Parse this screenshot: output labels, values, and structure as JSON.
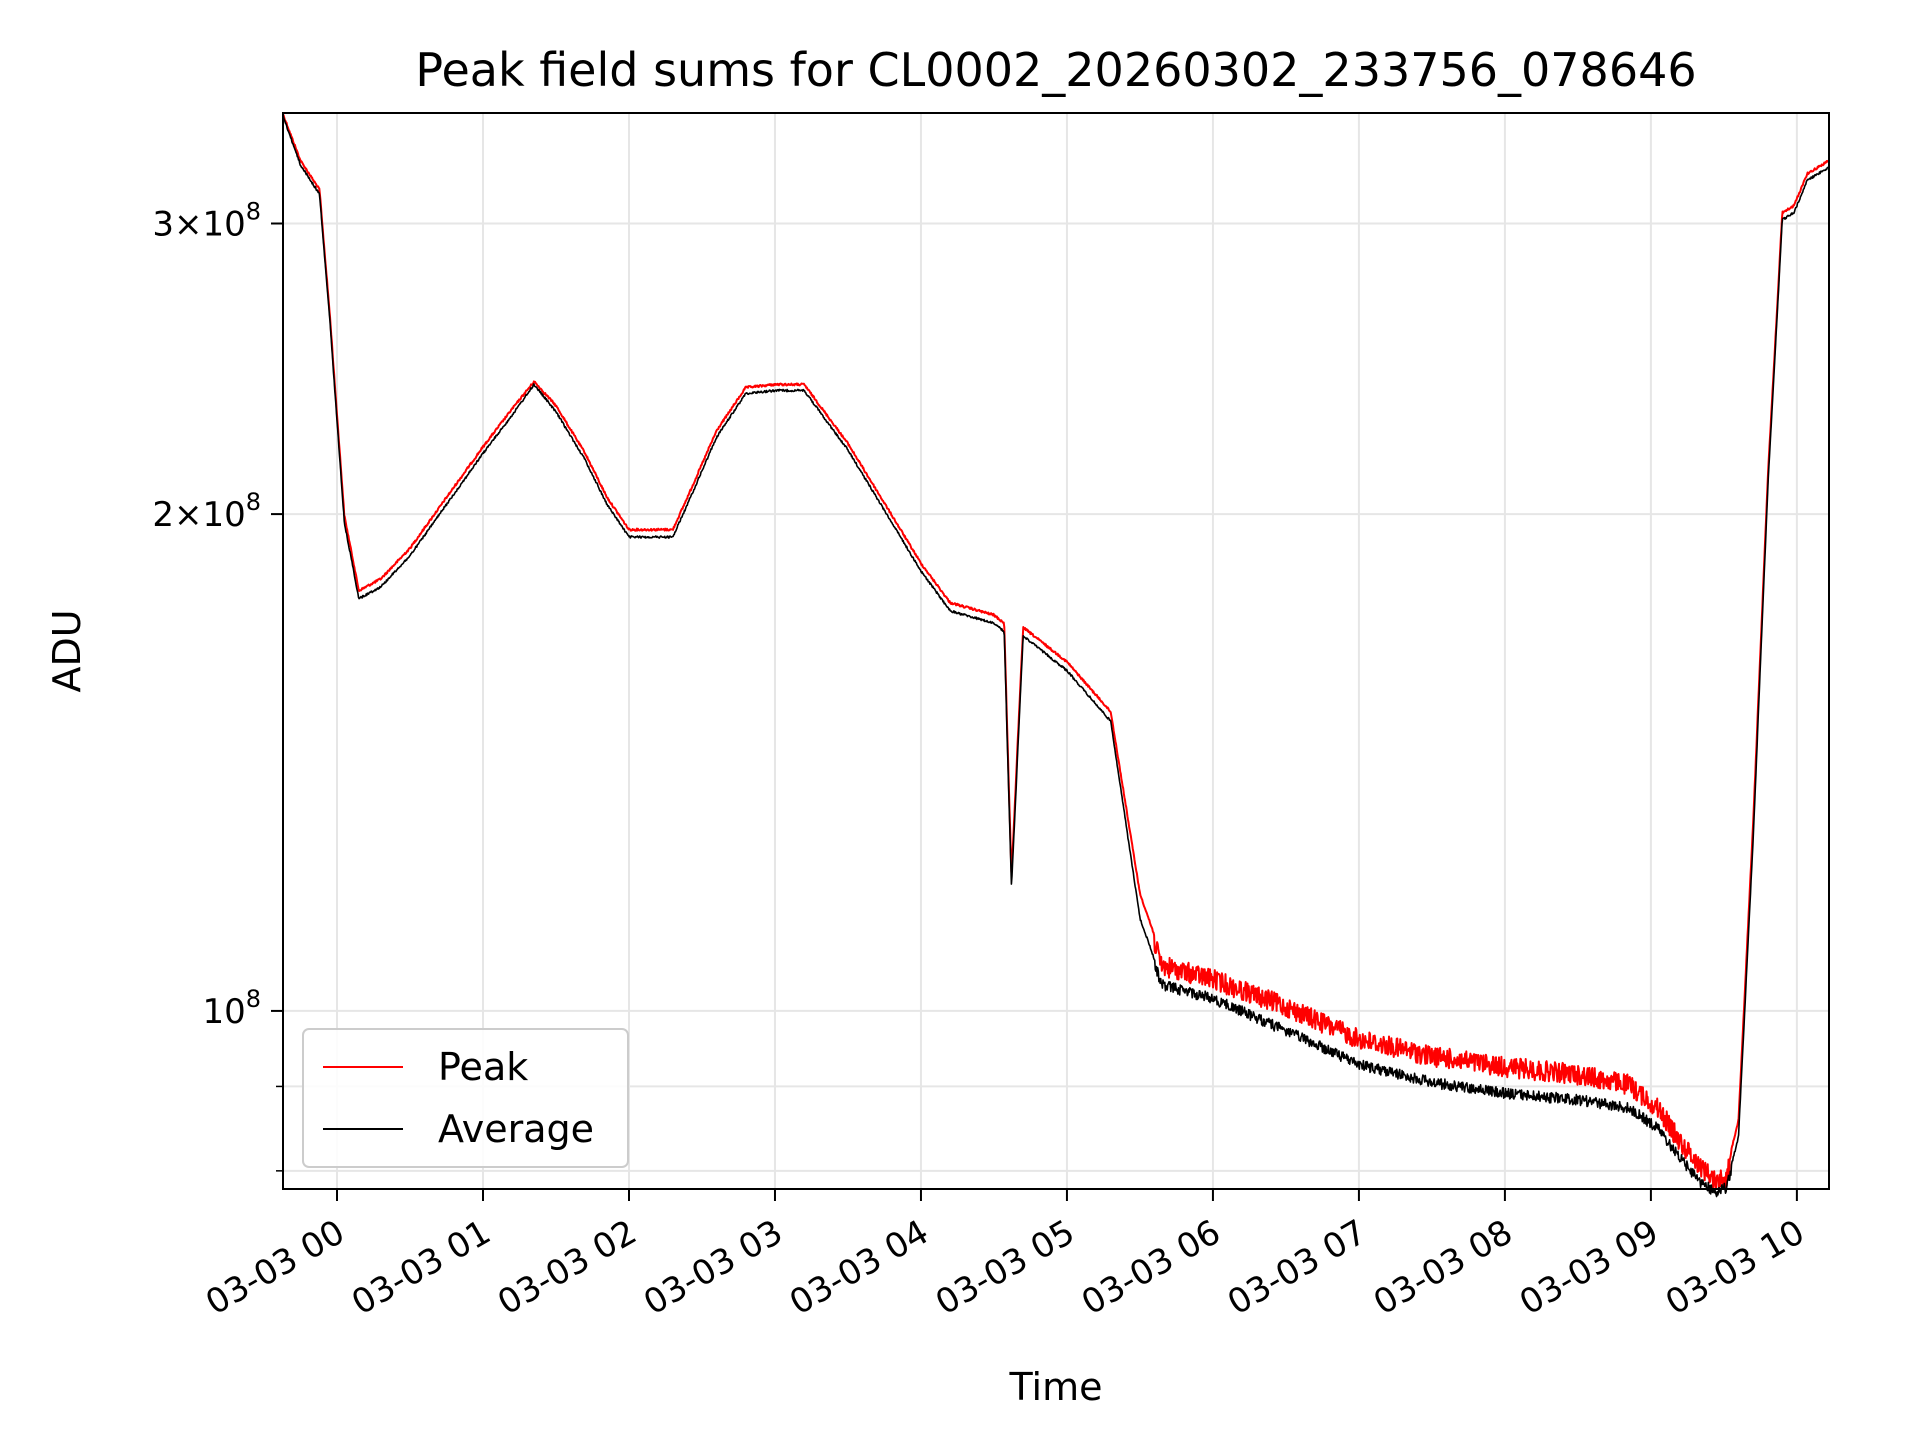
{
  "chart_data": {
    "type": "line",
    "title": "Peak field sums for CL0002_20260302_233756_078646",
    "xlabel": "Time",
    "ylabel": "ADU",
    "yscale": "log",
    "grid": true,
    "legend_position": "lower-left",
    "x_unit": "hours since 2026-03-03 00:00",
    "xlim": [
      -0.37,
      10.22
    ],
    "ylim": [
      78000000,
      350000000
    ],
    "x_ticks": [
      {
        "value": 0,
        "label": "03-03 00"
      },
      {
        "value": 1,
        "label": "03-03 01"
      },
      {
        "value": 2,
        "label": "03-03 02"
      },
      {
        "value": 3,
        "label": "03-03 03"
      },
      {
        "value": 4,
        "label": "03-03 04"
      },
      {
        "value": 5,
        "label": "03-03 05"
      },
      {
        "value": 6,
        "label": "03-03 06"
      },
      {
        "value": 7,
        "label": "03-03 07"
      },
      {
        "value": 8,
        "label": "03-03 08"
      },
      {
        "value": 9,
        "label": "03-03 09"
      },
      {
        "value": 10,
        "label": "03-03 10"
      }
    ],
    "y_ticks": [
      {
        "value": 100000000,
        "mantissa": "",
        "exponent": "8"
      },
      {
        "value": 200000000,
        "mantissa": "2",
        "exponent": "8"
      },
      {
        "value": 300000000,
        "mantissa": "3",
        "exponent": "8"
      }
    ],
    "y_minor_ticks": [
      80000000,
      90000000
    ],
    "series": [
      {
        "name": "Peak",
        "color": "#ff0000",
        "noise": 0.028,
        "x": [
          -0.37,
          -0.25,
          -0.12,
          -0.05,
          0.05,
          0.15,
          0.3,
          0.5,
          0.75,
          1.0,
          1.2,
          1.35,
          1.5,
          1.7,
          1.85,
          2.0,
          2.1,
          2.3,
          2.4,
          2.6,
          2.8,
          3.0,
          3.2,
          3.5,
          3.8,
          4.0,
          4.2,
          4.5,
          4.57,
          4.62,
          4.7,
          5.0,
          5.3,
          5.5,
          5.65,
          6.0,
          6.5,
          7.0,
          7.5,
          8.0,
          8.5,
          8.85,
          9.05,
          9.2,
          9.35,
          9.45,
          9.52,
          9.6,
          9.7,
          9.8,
          9.9,
          9.98,
          10.07,
          10.22
        ],
        "y": [
          350000000,
          328000000,
          315000000,
          265000000,
          200000000,
          180000000,
          183000000,
          191000000,
          205000000,
          220000000,
          232000000,
          241000000,
          233000000,
          218000000,
          205000000,
          196000000,
          196000000,
          196000000,
          205000000,
          225000000,
          239000000,
          240000000,
          240000000,
          221000000,
          200000000,
          187000000,
          177000000,
          174000000,
          172000000,
          121000000,
          171000000,
          163000000,
          152000000,
          118000000,
          108000000,
          106000000,
          102000000,
          97500000,
          95200000,
          93800000,
          92800000,
          91500000,
          88500000,
          84500000,
          81500000,
          80000000,
          80500000,
          86000000,
          130000000,
          210000000,
          305000000,
          308000000,
          322000000,
          328000000
        ]
      },
      {
        "name": "Average",
        "color": "#000000",
        "noise": 0.015,
        "x": [
          -0.37,
          -0.25,
          -0.12,
          -0.05,
          0.05,
          0.15,
          0.3,
          0.5,
          0.75,
          1.0,
          1.2,
          1.35,
          1.5,
          1.7,
          1.85,
          2.0,
          2.1,
          2.3,
          2.4,
          2.6,
          2.8,
          3.0,
          3.2,
          3.5,
          3.8,
          4.0,
          4.2,
          4.5,
          4.57,
          4.62,
          4.7,
          5.0,
          5.3,
          5.5,
          5.65,
          6.0,
          6.5,
          7.0,
          7.5,
          8.0,
          8.5,
          8.85,
          9.05,
          9.2,
          9.35,
          9.45,
          9.52,
          9.6,
          9.7,
          9.8,
          9.9,
          9.98,
          10.07,
          10.22
        ],
        "y": [
          349000000,
          326000000,
          313000000,
          263000000,
          198000000,
          178000000,
          181000000,
          189000000,
          203000000,
          218000000,
          230000000,
          240000000,
          231000000,
          216000000,
          203000000,
          194000000,
          194000000,
          194000000,
          203000000,
          223000000,
          237000000,
          238000000,
          238000000,
          219000000,
          198000000,
          185000000,
          175000000,
          172000000,
          170000000,
          119000000,
          169000000,
          161000000,
          150000000,
          114000000,
          104500000,
          102500000,
          98000000,
          93500000,
          91200000,
          89800000,
          89000000,
          88000000,
          85500000,
          82000000,
          79200000,
          78200000,
          78800000,
          84000000,
          127000000,
          207000000,
          302000000,
          305000000,
          319000000,
          325000000
        ]
      }
    ]
  }
}
